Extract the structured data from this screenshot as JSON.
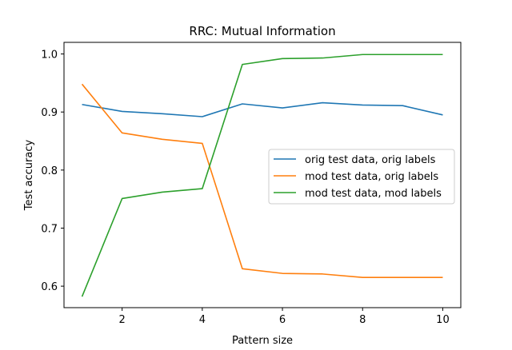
{
  "chart_data": {
    "type": "line",
    "title": "RRC: Mutual Information",
    "xlabel": "Pattern size",
    "ylabel": "Test accuracy",
    "xlim": [
      0.55,
      10.45
    ],
    "ylim": [
      0.563,
      1.02
    ],
    "x_ticks": [
      2,
      4,
      6,
      8,
      10
    ],
    "y_ticks": [
      0.6,
      0.7,
      0.8,
      0.9,
      1.0
    ],
    "x_tick_labels": [
      "2",
      "4",
      "6",
      "8",
      "10"
    ],
    "y_tick_labels": [
      "0.6",
      "0.7",
      "0.8",
      "0.9",
      "1.0"
    ],
    "grid": false,
    "legend_position": "center-right",
    "x": [
      1,
      2,
      3,
      4,
      5,
      6,
      7,
      8,
      9,
      10
    ],
    "series": [
      {
        "name": "orig test data, orig labels",
        "color": "#1f77b4",
        "values": [
          0.913,
          0.901,
          0.897,
          0.892,
          0.914,
          0.907,
          0.916,
          0.912,
          0.911,
          0.895
        ]
      },
      {
        "name": "mod test data, orig labels",
        "color": "#ff7f0e",
        "values": [
          0.948,
          0.864,
          0.853,
          0.846,
          0.63,
          0.622,
          0.621,
          0.615,
          0.615,
          0.615
        ]
      },
      {
        "name": "mod test data, mod labels",
        "color": "#2ca02c",
        "values": [
          0.582,
          0.751,
          0.762,
          0.768,
          0.982,
          0.992,
          0.993,
          0.999,
          0.999,
          0.999
        ]
      }
    ]
  }
}
